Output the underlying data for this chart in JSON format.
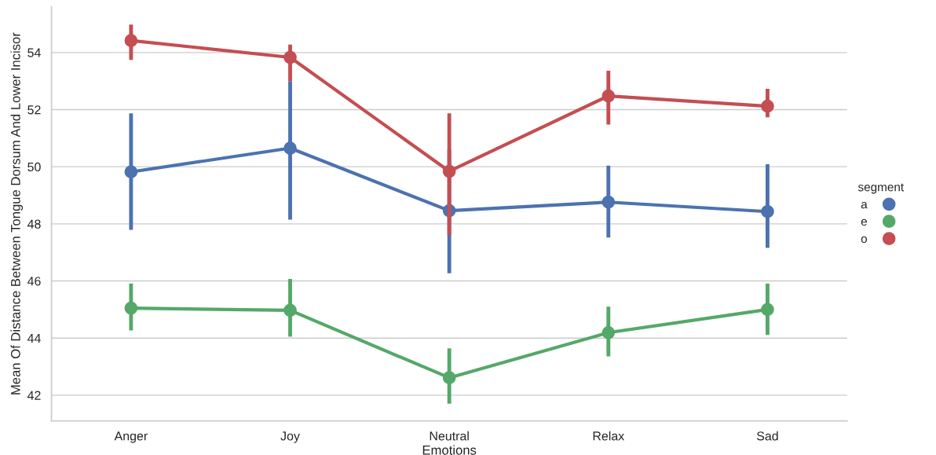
{
  "chart_data": {
    "type": "line",
    "xlabel": "Emotions",
    "ylabel": "Mean Of Distance Between Tongue Dorsum And Lower Incisor",
    "legend_title": "segment",
    "legend": "right",
    "grid": "y",
    "marker": "circle",
    "line_style": "solid",
    "categories": [
      "Anger",
      "Joy",
      "Neutral",
      "Relax",
      "Sad"
    ],
    "ylim": [
      41.1,
      55.6
    ],
    "yticks": [
      42,
      44,
      46,
      48,
      50,
      52,
      54
    ],
    "series": [
      {
        "name": "a",
        "color": "#4c72b0",
        "values": [
          49.82,
          50.65,
          48.46,
          48.76,
          48.43
        ],
        "errors": [
          [
            47.79,
            51.87
          ],
          [
            48.15,
            53.0
          ],
          [
            46.27,
            50.6
          ],
          [
            47.52,
            50.04
          ],
          [
            47.16,
            50.09
          ]
        ]
      },
      {
        "name": "e",
        "color": "#55a868",
        "values": [
          45.05,
          44.97,
          42.61,
          44.19,
          45.0
        ],
        "errors": [
          [
            44.27,
            45.91
          ],
          [
            44.05,
            46.07
          ],
          [
            41.7,
            43.64
          ],
          [
            43.36,
            45.1
          ],
          [
            44.11,
            45.91
          ]
        ]
      },
      {
        "name": "o",
        "color": "#c44e52",
        "values": [
          54.42,
          53.83,
          49.84,
          52.48,
          52.12
        ],
        "errors": [
          [
            53.74,
            54.98
          ],
          [
            53.0,
            54.28
          ],
          [
            47.6,
            51.87
          ],
          [
            51.48,
            53.36
          ],
          [
            51.73,
            52.73
          ]
        ]
      }
    ]
  }
}
